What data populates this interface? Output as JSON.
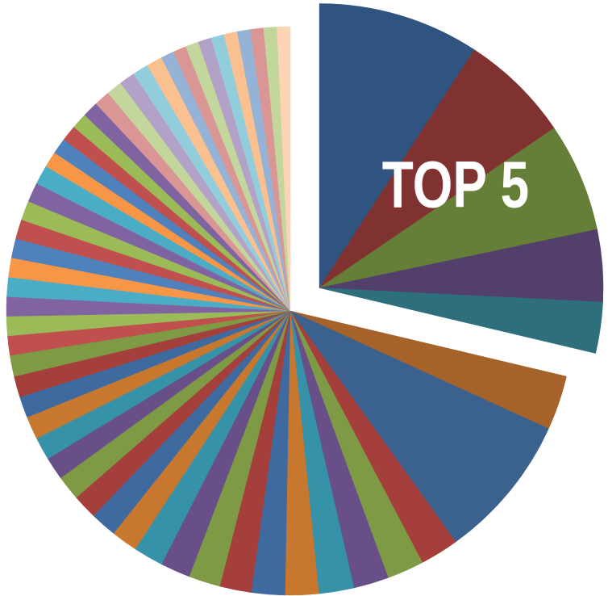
{
  "chart_data": {
    "type": "pie",
    "annotation": "TOP 5",
    "values": [
      9.2,
      6.3,
      6.2,
      4.1,
      2.9,
      3.1,
      8.3,
      2.2,
      2.1,
      2.0,
      2.0,
      1.9,
      1.9,
      1.8,
      1.8,
      1.7,
      1.7,
      1.5,
      1.5,
      1.4,
      1.4,
      1.3,
      1.3,
      1.3,
      1.2,
      1.2,
      1.2,
      1.1,
      1.1,
      1.1,
      1.1,
      1.1,
      1.1,
      1.1,
      1.1,
      1.1,
      1.1,
      0.9,
      0.9,
      0.9,
      0.9,
      0.9,
      0.9,
      0.9,
      0.9,
      0.9,
      0.9,
      0.75,
      0.75,
      0.75,
      0.75,
      0.75,
      0.75,
      0.75,
      0.75,
      0.75,
      0.75
    ],
    "colors": [
      "#2f5480",
      "#7f3230",
      "#657e38",
      "#533f6c",
      "#2e6f7c",
      "#a5632a",
      "#3b628f",
      "#a43f3c",
      "#7f9a45",
      "#684f88",
      "#3592a9",
      "#c8772f",
      "#3e6aa0",
      "#a43f3c",
      "#7f9a45",
      "#684f88",
      "#3592a9",
      "#c8772f",
      "#3e6aa0",
      "#a43f3c",
      "#7f9a45",
      "#684f88",
      "#3592a9",
      "#c8772f",
      "#3e6aa0",
      "#a43f3c",
      "#7f9a45",
      "#c0504d",
      "#9bbb59",
      "#8064a2",
      "#4bacc6",
      "#f79646",
      "#4f81bd",
      "#c0504d",
      "#9bbb59",
      "#8064a2",
      "#4bacc6",
      "#f79646",
      "#4f81bd",
      "#c0504d",
      "#9bbb59",
      "#8064a2",
      "#d99694",
      "#c3d69b",
      "#b3a2c7",
      "#92cddc",
      "#fac090",
      "#95b3d7",
      "#d99694",
      "#c3d69b",
      "#b3a2c7",
      "#92cddc",
      "#fac090",
      "#95b3d7",
      "#d99694",
      "#c3d69b",
      "#fbd4b4"
    ],
    "explode_first": 5
  }
}
